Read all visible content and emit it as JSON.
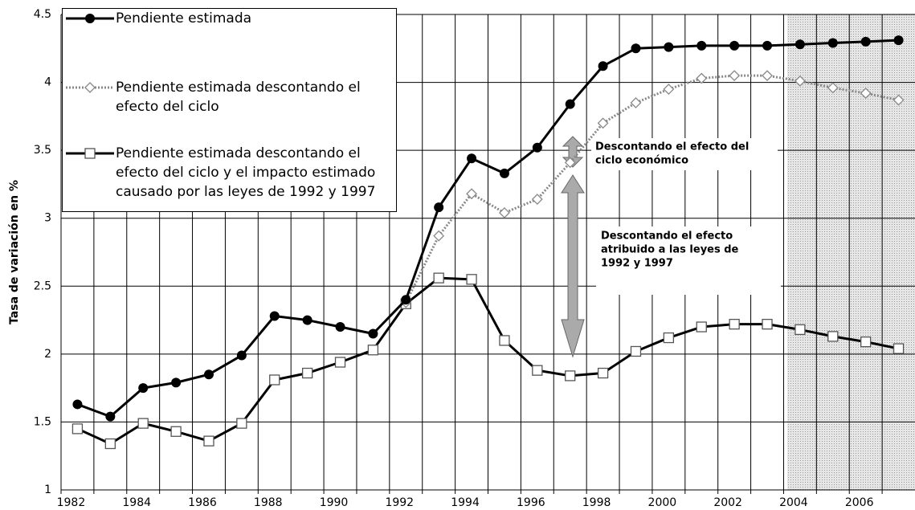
{
  "chart_data": {
    "type": "line",
    "y_label": "Tasa de variación en %",
    "categories": [
      "1982",
      null,
      "1984",
      null,
      "1986",
      null,
      "1988",
      null,
      "1990",
      null,
      "1992",
      null,
      "1994",
      null,
      "1996",
      null,
      "1998",
      null,
      "2000",
      null,
      "2002",
      null,
      "2004",
      null,
      "2006",
      null
    ],
    "series": [
      {
        "name": "Pendiente estimada",
        "color": "#000000",
        "marker": "circle",
        "values": [
          1.63,
          1.54,
          1.75,
          1.79,
          1.85,
          1.99,
          2.28,
          2.25,
          2.2,
          2.15,
          2.4,
          3.08,
          3.44,
          3.33,
          3.52,
          3.84,
          4.12,
          4.25,
          4.26,
          4.27,
          4.27,
          4.27,
          4.28,
          4.29,
          4.3,
          4.31
        ]
      },
      {
        "name": "Pendiente estimada descontando el efecto del ciclo",
        "color": "#888888",
        "marker": "diamond",
        "values": [
          null,
          null,
          null,
          null,
          null,
          null,
          null,
          null,
          null,
          null,
          2.38,
          2.87,
          3.18,
          3.04,
          3.14,
          3.41,
          3.7,
          3.85,
          3.95,
          4.03,
          4.05,
          4.05,
          4.01,
          3.96,
          3.92,
          3.87
        ]
      },
      {
        "name": "Pendiente estimada descontando el efecto del ciclo y el impacto estimado causado por las leyes de 1992 y 1997",
        "color": "#000000",
        "marker": "square",
        "values": [
          1.45,
          1.34,
          1.49,
          1.43,
          1.36,
          1.49,
          1.81,
          1.86,
          1.94,
          2.03,
          2.37,
          2.56,
          2.55,
          2.1,
          1.88,
          1.84,
          1.86,
          2.02,
          2.12,
          2.2,
          2.22,
          2.22,
          2.18,
          2.13,
          2.09,
          2.04
        ]
      }
    ],
    "ylim": [
      1,
      4.5
    ],
    "yticks": [
      1,
      1.5,
      2,
      2.5,
      3,
      3.5,
      4,
      4.5
    ],
    "grid": true,
    "legend": "upper left",
    "annotations": [
      {
        "lines": [
          "Descontando el efecto del",
          "ciclo económico"
        ]
      },
      {
        "lines": [
          "Descontando el efecto",
          "atribuido a las leyes de",
          "1992 y 1997"
        ]
      }
    ]
  }
}
